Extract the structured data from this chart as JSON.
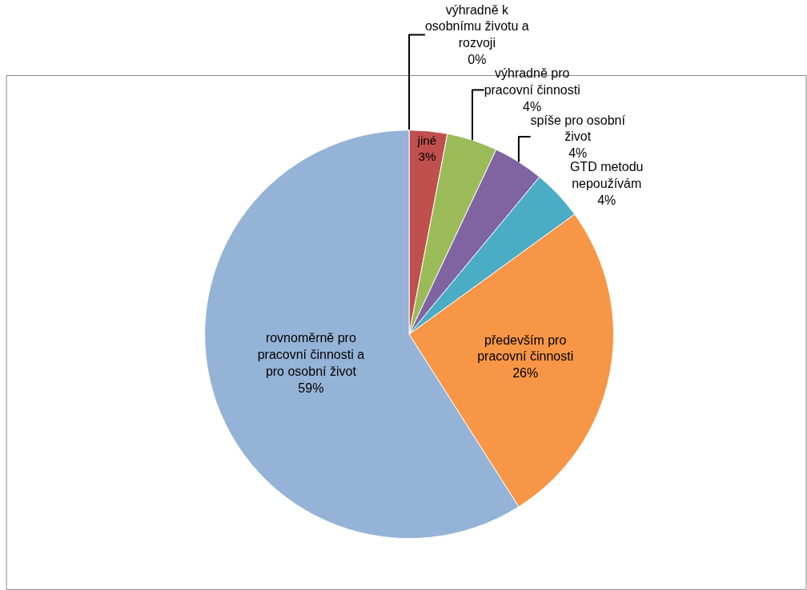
{
  "chart_data": {
    "type": "pie",
    "categories": [
      "výhradně k\nosobnímu životu a\nrozvoji",
      "jiné",
      "výhradně pro\npracovní činnosti",
      "spíše pro osobní\nživot",
      "GTD metodu\nnepoužívám",
      "především pro\npracovní činnosti",
      "rovnoměrně pro\npracovní činnosti a\npro osobní život"
    ],
    "values": [
      0,
      3,
      4,
      4,
      4,
      26,
      59
    ],
    "colors": [
      "#2e75b6",
      "#c0504d",
      "#9bbb59",
      "#8064a2",
      "#4bacc6",
      "#f79646",
      "#95b3d7"
    ],
    "value_labels": [
      "0%",
      "3%",
      "4%",
      "4%",
      "4%",
      "26%",
      "59%"
    ],
    "legend": false
  }
}
